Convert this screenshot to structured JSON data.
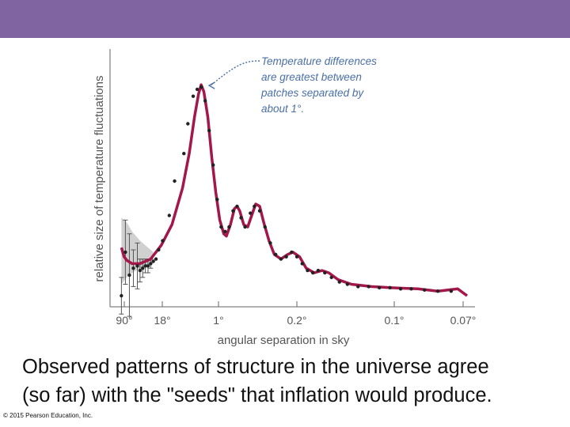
{
  "theme": {
    "band_color": "#8064a2",
    "curve_color": "#a3174a",
    "band_fill": "#c4c4c4",
    "point_color": "#222222"
  },
  "slide": {
    "caption_line1": "Observed patterns of structure in the universe agree",
    "caption_line2": "(so far) with the \"seeds\" that inflation would produce.",
    "copyright": "© 2015 Pearson Education, Inc."
  },
  "chart_data": {
    "type": "scatter",
    "xlabel": "angular separation in sky",
    "ylabel": "relative size of temperature fluctuations",
    "x_ticks": [
      "90°",
      "18°",
      "1°",
      "0.2°",
      "0.1°",
      "0.07°"
    ],
    "x_scale": "multipole (log-like), decreasing angle to the right",
    "annotation": {
      "lines": [
        "Temperature differences",
        "are greatest between",
        "patches separated by",
        "about 1°."
      ],
      "points_to": "first peak near 1°"
    },
    "series": [
      {
        "kind": "model-curve",
        "points": [
          [
            2,
            0.21
          ],
          [
            4,
            0.17
          ],
          [
            6,
            0.155
          ],
          [
            10,
            0.14
          ],
          [
            16,
            0.14
          ],
          [
            24,
            0.16
          ],
          [
            32,
            0.22
          ],
          [
            40,
            0.31
          ],
          [
            48,
            0.47
          ],
          [
            53,
            0.62
          ],
          [
            57,
            0.78
          ],
          [
            60,
            0.88
          ],
          [
            62,
            0.92
          ],
          [
            64,
            0.89
          ],
          [
            67,
            0.78
          ],
          [
            70,
            0.6
          ],
          [
            73,
            0.45
          ],
          [
            76,
            0.33
          ],
          [
            79,
            0.27
          ],
          [
            81,
            0.26
          ],
          [
            84,
            0.31
          ],
          [
            87,
            0.38
          ],
          [
            89,
            0.39
          ],
          [
            91,
            0.37
          ],
          [
            94,
            0.31
          ],
          [
            97,
            0.3
          ],
          [
            100,
            0.35
          ],
          [
            103,
            0.4
          ],
          [
            106,
            0.39
          ],
          [
            109,
            0.32
          ],
          [
            113,
            0.24
          ],
          [
            117,
            0.18
          ],
          [
            122,
            0.16
          ],
          [
            127,
            0.18
          ],
          [
            131,
            0.19
          ],
          [
            136,
            0.17
          ],
          [
            141,
            0.12
          ],
          [
            147,
            0.1
          ],
          [
            153,
            0.11
          ],
          [
            158,
            0.1
          ],
          [
            165,
            0.07
          ],
          [
            175,
            0.05
          ],
          [
            190,
            0.04
          ],
          [
            205,
            0.035
          ],
          [
            225,
            0.03
          ],
          [
            240,
            0.02
          ],
          [
            255,
            0.03
          ],
          [
            262,
            0.0
          ]
        ]
      },
      {
        "kind": "data-points",
        "points": [
          [
            2,
            0.0
          ],
          [
            5,
            0.19
          ],
          [
            8,
            0.09
          ],
          [
            11,
            0.12
          ],
          [
            14,
            0.13
          ],
          [
            16,
            0.11
          ],
          [
            18,
            0.12
          ],
          [
            20,
            0.13
          ],
          [
            22,
            0.13
          ],
          [
            24,
            0.14
          ],
          [
            26,
            0.15
          ],
          [
            28,
            0.16
          ],
          [
            30,
            0.2
          ],
          [
            33,
            0.24
          ],
          [
            38,
            0.35
          ],
          [
            42,
            0.5
          ],
          [
            49,
            0.62
          ],
          [
            52,
            0.75
          ],
          [
            56,
            0.87
          ],
          [
            59,
            0.9
          ],
          [
            62,
            0.91
          ],
          [
            65,
            0.85
          ],
          [
            68,
            0.72
          ],
          [
            71,
            0.57
          ],
          [
            74,
            0.42
          ],
          [
            77,
            0.3
          ],
          [
            80,
            0.28
          ],
          [
            83,
            0.3
          ],
          [
            86,
            0.37
          ],
          [
            89,
            0.39
          ],
          [
            92,
            0.34
          ],
          [
            95,
            0.3
          ],
          [
            99,
            0.36
          ],
          [
            102,
            0.39
          ],
          [
            106,
            0.37
          ],
          [
            110,
            0.3
          ],
          [
            114,
            0.23
          ],
          [
            118,
            0.18
          ],
          [
            122,
            0.16
          ],
          [
            126,
            0.17
          ],
          [
            130,
            0.19
          ],
          [
            134,
            0.17
          ],
          [
            138,
            0.14
          ],
          [
            142,
            0.11
          ],
          [
            146,
            0.1
          ],
          [
            150,
            0.11
          ],
          [
            155,
            0.1
          ],
          [
            160,
            0.08
          ],
          [
            166,
            0.06
          ],
          [
            172,
            0.05
          ],
          [
            180,
            0.04
          ],
          [
            188,
            0.04
          ],
          [
            196,
            0.035
          ],
          [
            204,
            0.035
          ],
          [
            212,
            0.03
          ],
          [
            220,
            0.03
          ],
          [
            230,
            0.025
          ],
          [
            240,
            0.02
          ],
          [
            250,
            0.02
          ]
        ]
      }
    ],
    "error_bars": [
      [
        2,
        0.0,
        0.08
      ],
      [
        5,
        0.19,
        0.14
      ],
      [
        8,
        0.09,
        0.18
      ],
      [
        11,
        0.12,
        0.08
      ],
      [
        14,
        0.13,
        0.1
      ],
      [
        16,
        0.11,
        0.05
      ],
      [
        18,
        0.12,
        0.04
      ],
      [
        20,
        0.13,
        0.03
      ],
      [
        22,
        0.13,
        0.03
      ],
      [
        24,
        0.14,
        0.02
      ]
    ],
    "cosmic_variance_band": {
      "upper": [
        [
          2,
          0.34
        ],
        [
          6,
          0.32
        ],
        [
          10,
          0.28
        ],
        [
          16,
          0.24
        ],
        [
          22,
          0.21
        ],
        [
          26,
          0.19
        ]
      ],
      "lower": [
        [
          2,
          0.05
        ],
        [
          6,
          0.08
        ],
        [
          10,
          0.1
        ],
        [
          16,
          0.12
        ],
        [
          22,
          0.13
        ],
        [
          26,
          0.14
        ]
      ]
    }
  }
}
